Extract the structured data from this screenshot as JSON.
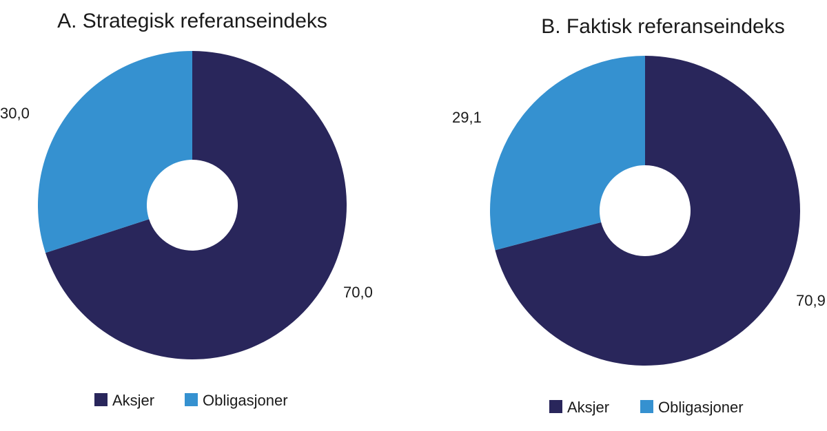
{
  "chart_data": [
    {
      "type": "pie",
      "title": "A. Strategisk referanseindeks",
      "categories": [
        "Aksjer",
        "Obligasjoner"
      ],
      "values": [
        70.0,
        30.0
      ],
      "value_labels": [
        "70,0",
        "30,0"
      ],
      "colors": [
        "#29265b",
        "#3591d0"
      ],
      "donut": true,
      "legend": "bottom"
    },
    {
      "type": "pie",
      "title": "B. Faktisk referanseindeks",
      "categories": [
        "Aksjer",
        "Obligasjoner"
      ],
      "values": [
        70.9,
        29.1
      ],
      "value_labels": [
        "70,9",
        "29,1"
      ],
      "colors": [
        "#29265b",
        "#3591d0"
      ],
      "donut": true,
      "legend": "bottom"
    }
  ]
}
